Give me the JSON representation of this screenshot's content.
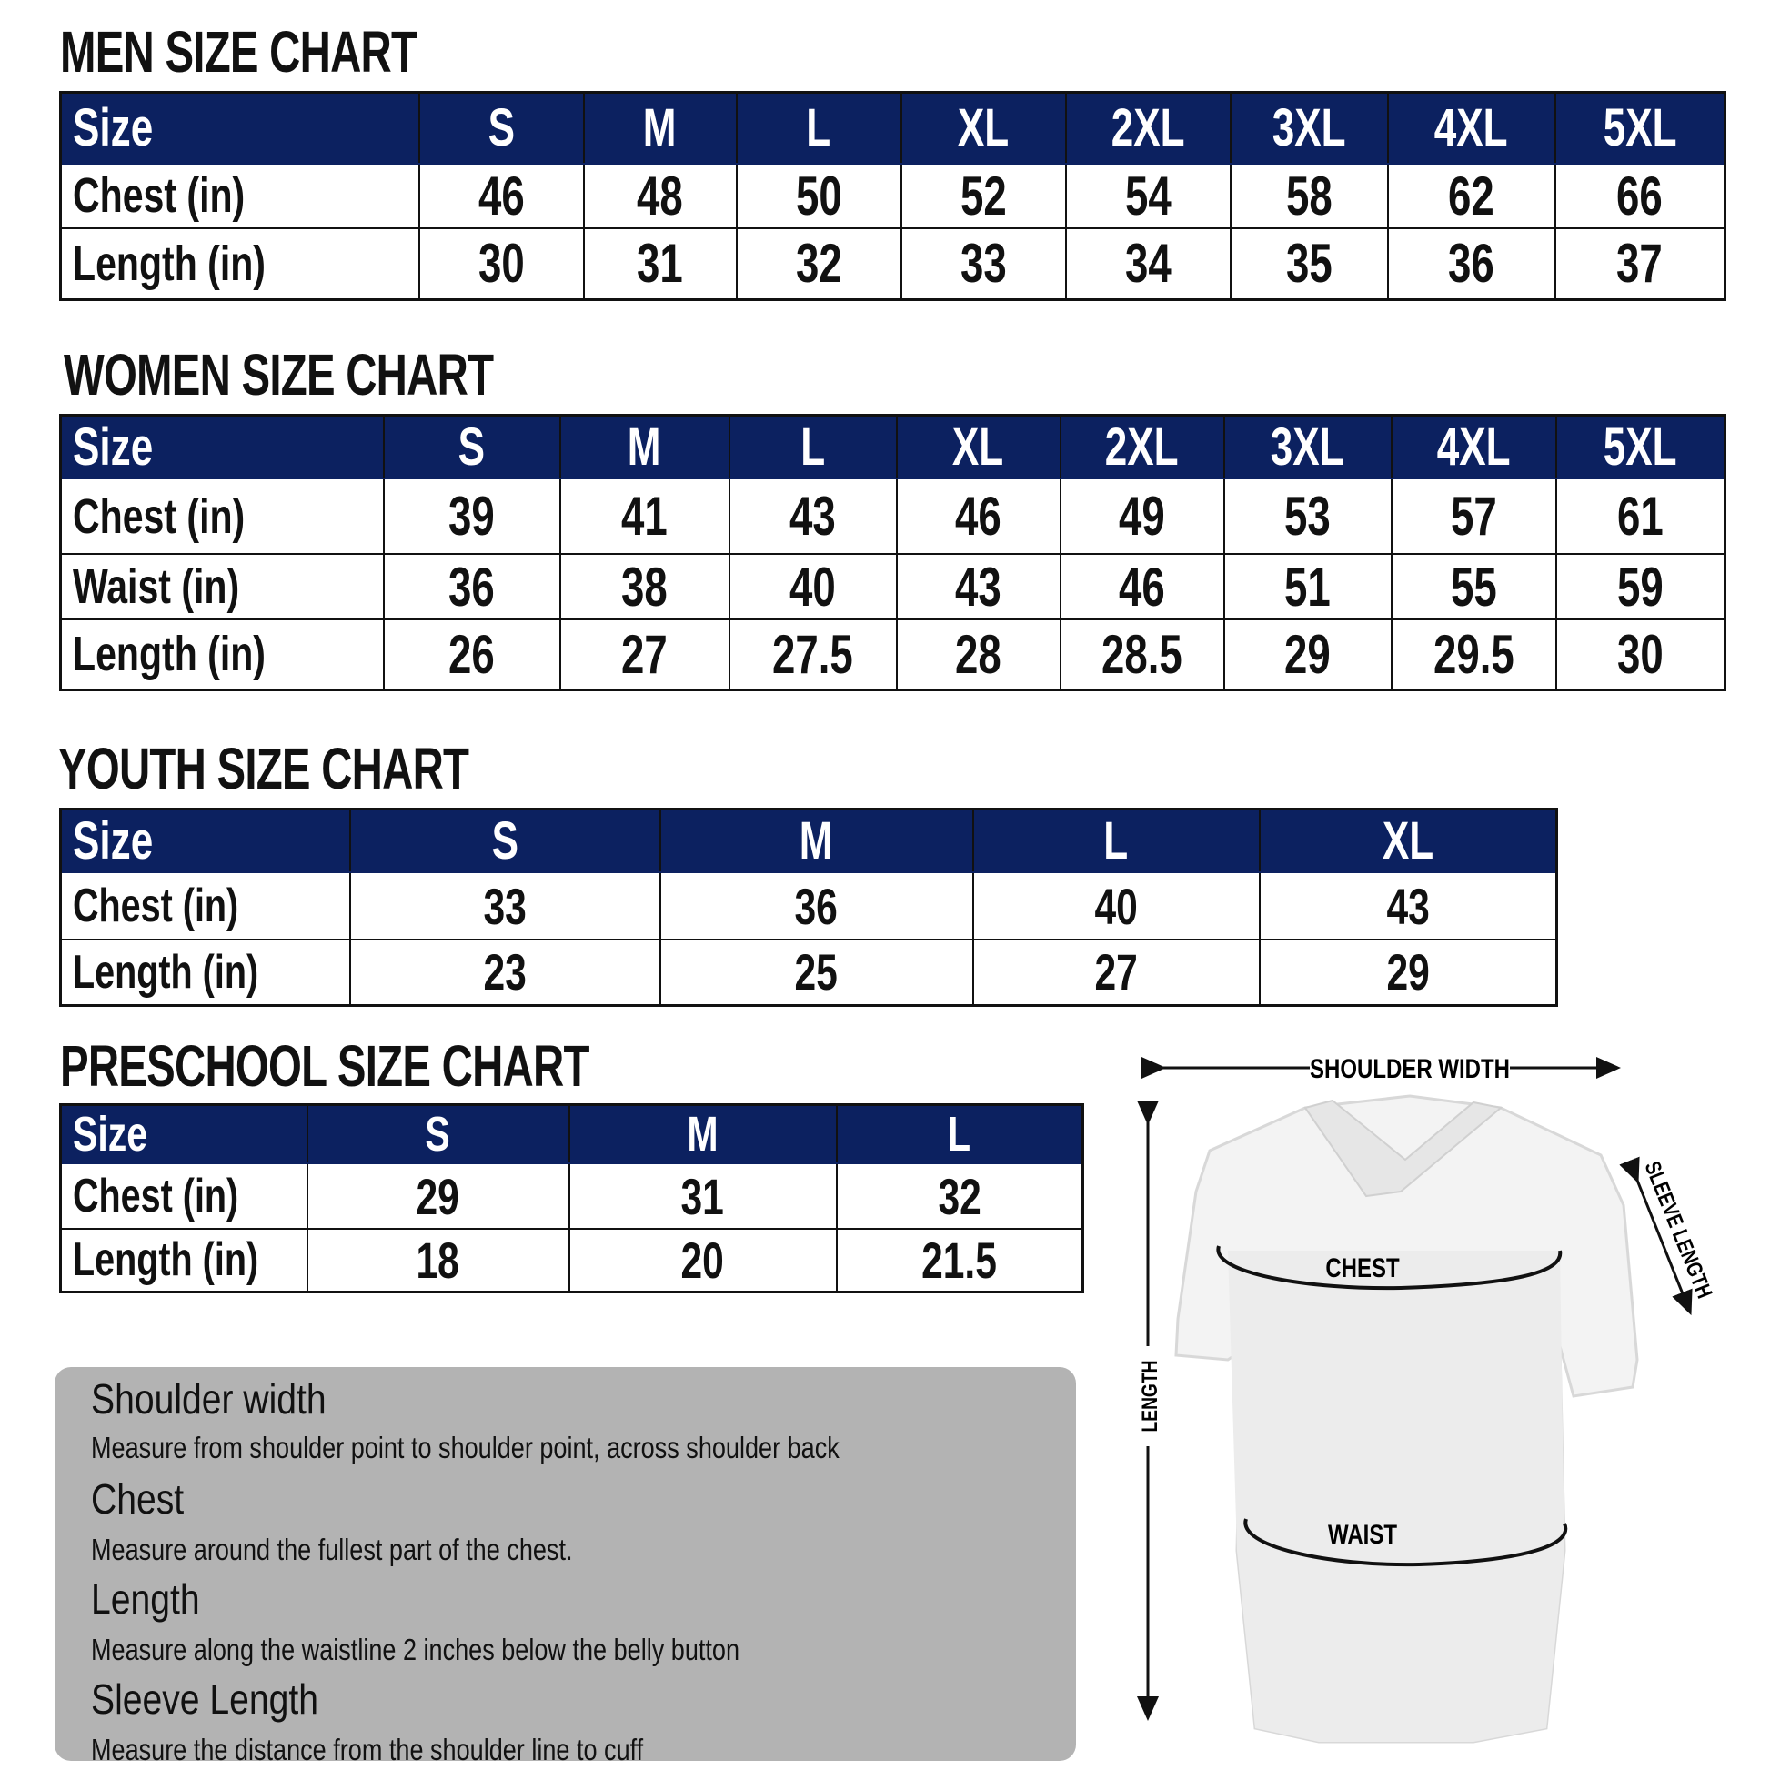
{
  "men": {
    "title": "MEN SIZE CHART",
    "header": [
      "Size",
      "S",
      "M",
      "L",
      "XL",
      "2XL",
      "3XL",
      "4XL",
      "5XL"
    ],
    "rows": [
      [
        "Chest (in)",
        "46",
        "48",
        "50",
        "52",
        "54",
        "58",
        "62",
        "66"
      ],
      [
        "Length (in)",
        "30",
        "31",
        "32",
        "33",
        "34",
        "35",
        "36",
        "37"
      ]
    ]
  },
  "women": {
    "title": "WOMEN SIZE CHART",
    "header": [
      "Size",
      "S",
      "M",
      "L",
      "XL",
      "2XL",
      "3XL",
      "4XL",
      "5XL"
    ],
    "rows": [
      [
        "Chest (in)",
        "39",
        "41",
        "43",
        "46",
        "49",
        "53",
        "57",
        "61"
      ],
      [
        "Waist (in)",
        "36",
        "38",
        "40",
        "43",
        "46",
        "51",
        "55",
        "59"
      ],
      [
        "Length (in)",
        "26",
        "27",
        "27.5",
        "28",
        "28.5",
        "29",
        "29.5",
        "30"
      ]
    ]
  },
  "youth": {
    "title": "YOUTH SIZE CHART",
    "header": [
      "Size",
      "S",
      "M",
      "L",
      "XL"
    ],
    "rows": [
      [
        "Chest (in)",
        "33",
        "36",
        "40",
        "43"
      ],
      [
        "Length (in)",
        "23",
        "25",
        "27",
        "29"
      ]
    ]
  },
  "preschool": {
    "title": "PRESCHOOL SIZE CHART",
    "header": [
      "Size",
      "S",
      "M",
      "L"
    ],
    "rows": [
      [
        "Chest (in)",
        "29",
        "31",
        "32"
      ],
      [
        "Length (in)",
        "18",
        "20",
        "21.5"
      ]
    ]
  },
  "guide": [
    {
      "heading": "Shoulder width",
      "text": "Measure from shoulder point to shoulder point, across shoulder back"
    },
    {
      "heading": "Chest",
      "text": "Measure around the fullest part of the chest."
    },
    {
      "heading": "Length",
      "text": "Measure along the waistline 2 inches below the belly button"
    },
    {
      "heading": "Sleeve Length",
      "text": "Measure the distance from the shoulder line to cuff"
    }
  ],
  "diagram": {
    "shoulder_width": "SHOULDER WIDTH",
    "sleeve_length": "SLEEVE LENGTH",
    "length": "LENGTH",
    "chest": "CHEST",
    "waist": "WAIST"
  },
  "colors": {
    "header_bg": "#0c2160",
    "guide_bg": "#b3b3b3"
  }
}
